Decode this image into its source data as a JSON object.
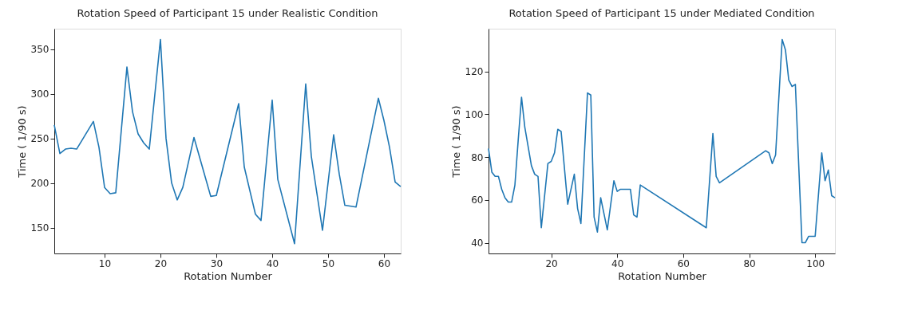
{
  "chart_data": [
    {
      "type": "line",
      "title": "Rotation Speed of Participant 15 under Realistic Condition",
      "xlabel": "Rotation Number",
      "ylabel": "Time ( 1/90 s)",
      "xlim": [
        1,
        63
      ],
      "xticks": [
        10,
        20,
        30,
        40,
        50,
        60
      ],
      "ylim": [
        121,
        373
      ],
      "yticks": [
        150,
        200,
        250,
        300,
        350
      ],
      "grid": false,
      "series": [
        {
          "color": "#1f77b4",
          "x": [
            1,
            2,
            3,
            4,
            5,
            8,
            9,
            10,
            11,
            12,
            14,
            15,
            16,
            17,
            18,
            20,
            21,
            22,
            23,
            24,
            26,
            29,
            30,
            34,
            35,
            37,
            38,
            40,
            41,
            44,
            46,
            47,
            49,
            51,
            52,
            53,
            55,
            59,
            60,
            61,
            62,
            63
          ],
          "values": [
            265,
            233,
            238,
            239,
            238,
            269,
            240,
            195,
            188,
            189,
            330,
            280,
            255,
            245,
            238,
            361,
            250,
            200,
            181,
            195,
            251,
            185,
            186,
            289,
            218,
            165,
            158,
            293,
            204,
            132,
            311,
            230,
            147,
            254,
            210,
            175,
            173,
            295,
            270,
            240,
            201,
            196
          ]
        }
      ]
    },
    {
      "type": "line",
      "title": "Rotation Speed of Participant 15 under Mediated Condition",
      "xlabel": "Rotation Number",
      "ylabel": "Time ( 1/90 s)",
      "xlim": [
        1,
        106
      ],
      "xticks": [
        20,
        40,
        60,
        80,
        100
      ],
      "ylim": [
        35,
        140
      ],
      "yticks": [
        40,
        60,
        80,
        100,
        120
      ],
      "grid": false,
      "series": [
        {
          "color": "#1f77b4",
          "x": [
            1,
            2,
            3,
            4,
            5,
            6,
            7,
            8,
            9,
            10,
            11,
            12,
            14,
            15,
            16,
            17,
            19,
            20,
            21,
            22,
            23,
            25,
            27,
            28,
            29,
            31,
            32,
            33,
            34,
            35,
            37,
            39,
            40,
            41,
            44,
            45,
            46,
            47,
            67,
            69,
            70,
            71,
            85,
            86,
            87,
            88,
            90,
            91,
            92,
            93,
            94,
            96,
            97,
            98,
            100,
            102,
            103,
            104,
            105,
            106
          ],
          "values": [
            84,
            73,
            71,
            71,
            65,
            61,
            59,
            59,
            67,
            88,
            108,
            94,
            76,
            72,
            71,
            47,
            77,
            78,
            82,
            93,
            92,
            58,
            72,
            56,
            49,
            110,
            109,
            52,
            45,
            61,
            46,
            69,
            64,
            65,
            65,
            53,
            52,
            67,
            47,
            91,
            71,
            68,
            83,
            82,
            77,
            81,
            135,
            130,
            116,
            113,
            114,
            40,
            40,
            43,
            43,
            82,
            69,
            74,
            62,
            61
          ]
        }
      ]
    }
  ]
}
